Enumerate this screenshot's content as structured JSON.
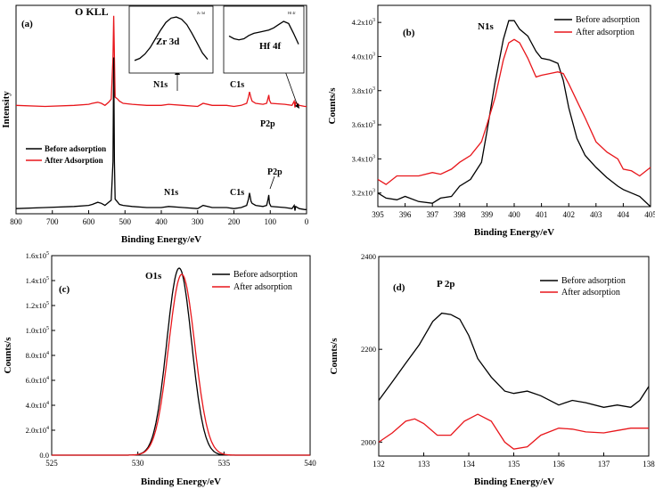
{
  "colors": {
    "before": "#000000",
    "after": "#e8161b"
  },
  "chart_data": [
    {
      "id": "a",
      "type": "line",
      "panel_label": "(a)",
      "xlabel": "Binding Energy/eV",
      "ylabel": "Intensity",
      "xlim": [
        800,
        0
      ],
      "ylim": [
        0,
        200
      ],
      "x_ticks": [
        800,
        700,
        600,
        500,
        400,
        300,
        200,
        100,
        0
      ],
      "legend": [
        "Before adsorption",
        "After Adsorption"
      ],
      "annotations": {
        "okll": "O KLL",
        "n1s_after": "N1s",
        "c1s_after": "C1s",
        "p2p_after": "P2p",
        "n1s_before": "N1s",
        "c1s_before": "C1s",
        "p2p_before": "P2p"
      },
      "series": [
        {
          "name": "After Adsorption",
          "color": "#e8161b",
          "x": [
            800,
            720,
            640,
            600,
            590,
            575,
            565,
            555,
            545,
            538,
            533,
            531,
            529,
            527,
            520,
            515,
            505,
            480,
            440,
            400,
            380,
            340,
            300,
            285,
            260,
            220,
            200,
            180,
            165,
            160,
            157,
            153,
            150,
            140,
            120,
            110,
            106,
            104,
            102,
            98,
            60,
            40,
            34,
            32,
            30,
            20,
            5,
            0
          ],
          "y": [
            104,
            103,
            104,
            105,
            106,
            107,
            106,
            104,
            107,
            110,
            150,
            190,
            150,
            112,
            110,
            108,
            106,
            105,
            104,
            104,
            105,
            104,
            103,
            106,
            104,
            104,
            103,
            104,
            106,
            112,
            117,
            111,
            108,
            106,
            105,
            106,
            111,
            114,
            109,
            106,
            105,
            104,
            108,
            102,
            107,
            104,
            103,
            103
          ]
        },
        {
          "name": "Before adsorption",
          "color": "#000000",
          "x": [
            800,
            720,
            640,
            600,
            590,
            575,
            565,
            555,
            545,
            538,
            533,
            531,
            529,
            527,
            520,
            515,
            505,
            480,
            440,
            400,
            380,
            340,
            300,
            285,
            260,
            220,
            200,
            180,
            165,
            160,
            157,
            153,
            150,
            140,
            120,
            110,
            106,
            104,
            102,
            98,
            60,
            40,
            34,
            32,
            30,
            20,
            5,
            0
          ],
          "y": [
            5,
            6,
            7,
            8,
            9,
            11,
            10,
            8,
            11,
            13,
            50,
            150,
            50,
            14,
            11,
            9,
            8,
            7,
            6,
            6,
            7,
            6,
            5,
            8,
            6,
            6,
            5,
            6,
            8,
            14,
            20,
            12,
            10,
            8,
            7,
            8,
            14,
            18,
            10,
            7,
            6,
            5,
            8,
            3,
            7,
            5,
            4,
            4
          ]
        }
      ],
      "inset_zr": {
        "title": "Zr 3d",
        "sub": "Zr 3d",
        "x": [
          1,
          2,
          3,
          4,
          5,
          6,
          7,
          8,
          9,
          10,
          11,
          12,
          13,
          14,
          15
        ],
        "y": [
          10,
          14,
          22,
          34,
          50,
          66,
          80,
          88,
          90,
          86,
          76,
          60,
          42,
          24,
          12
        ]
      },
      "inset_hf": {
        "title": "Hf 4f",
        "sub": "Hf 4f",
        "x": [
          1,
          2,
          3,
          4,
          5,
          6,
          7,
          8,
          9,
          10,
          11,
          12,
          13,
          14,
          15
        ],
        "y": [
          55,
          50,
          48,
          50,
          56,
          60,
          62,
          64,
          66,
          70,
          76,
          82,
          78,
          60,
          40
        ]
      }
    },
    {
      "id": "b",
      "type": "line",
      "panel_label": "(b)",
      "peak_label": "N1s",
      "xlabel": "Binding Energy/eV",
      "ylabel": "Counts/s",
      "xlim": [
        395,
        405
      ],
      "ylim": [
        3120,
        4300
      ],
      "x_ticks": [
        395,
        396,
        397,
        398,
        399,
        400,
        401,
        402,
        403,
        404,
        405
      ],
      "y_ticks": [
        {
          "v": 3200,
          "m": "3.2x10",
          "e": "3"
        },
        {
          "v": 3400,
          "m": "3.4x10",
          "e": "3"
        },
        {
          "v": 3600,
          "m": "3.6x10",
          "e": "3"
        },
        {
          "v": 3800,
          "m": "3.8x10",
          "e": "3"
        },
        {
          "v": 4000,
          "m": "4.0x10",
          "e": "3"
        },
        {
          "v": 4200,
          "m": "4.2x10",
          "e": "3"
        }
      ],
      "legend": [
        "Before adsorption",
        "After adsorption"
      ],
      "series": [
        {
          "name": "Before adsorption",
          "color": "#000000",
          "x": [
            395,
            395.3,
            395.7,
            396,
            396.5,
            397,
            397.3,
            397.7,
            398,
            398.4,
            398.8,
            399,
            399.3,
            399.6,
            399.8,
            400,
            400.2,
            400.5,
            400.8,
            401,
            401.3,
            401.6,
            401.8,
            402,
            402.3,
            402.6,
            403,
            403.4,
            403.8,
            404,
            404.3,
            404.6,
            405
          ],
          "y": [
            3200,
            3170,
            3160,
            3180,
            3150,
            3140,
            3170,
            3180,
            3240,
            3280,
            3380,
            3560,
            3850,
            4100,
            4210,
            4210,
            4160,
            4120,
            4030,
            3990,
            3980,
            3960,
            3860,
            3700,
            3520,
            3420,
            3350,
            3290,
            3240,
            3220,
            3200,
            3180,
            3120
          ]
        },
        {
          "name": "After adsorption",
          "color": "#e8161b",
          "x": [
            395,
            395.3,
            395.7,
            396,
            396.5,
            397,
            397.3,
            397.7,
            398,
            398.4,
            398.8,
            399,
            399.3,
            399.6,
            399.8,
            400,
            400.2,
            400.5,
            400.8,
            401,
            401.3,
            401.6,
            401.8,
            402,
            402.3,
            402.6,
            403,
            403.4,
            403.8,
            404,
            404.3,
            404.6,
            405
          ],
          "y": [
            3280,
            3250,
            3300,
            3300,
            3300,
            3320,
            3310,
            3340,
            3380,
            3420,
            3500,
            3600,
            3760,
            3980,
            4080,
            4100,
            4080,
            3990,
            3880,
            3890,
            3900,
            3910,
            3900,
            3840,
            3740,
            3640,
            3500,
            3440,
            3400,
            3340,
            3330,
            3300,
            3350
          ]
        }
      ]
    },
    {
      "id": "c",
      "type": "line",
      "panel_label": "(c)",
      "peak_label": "O1s",
      "xlabel": "Binding Energy/eV",
      "ylabel": "Counts/s",
      "xlim": [
        525,
        540
      ],
      "ylim": [
        0,
        160000
      ],
      "x_ticks": [
        525,
        530,
        535,
        540
      ],
      "y_ticks": [
        {
          "v": 0,
          "m": "0.0",
          "e": ""
        },
        {
          "v": 20000,
          "m": "2.0x10",
          "e": "4"
        },
        {
          "v": 40000,
          "m": "4.0x10",
          "e": "4"
        },
        {
          "v": 60000,
          "m": "6.0x10",
          "e": "4"
        },
        {
          "v": 80000,
          "m": "8.0x10",
          "e": "4"
        },
        {
          "v": 100000,
          "m": "1.0x10",
          "e": "5"
        },
        {
          "v": 120000,
          "m": "1.2x10",
          "e": "5"
        },
        {
          "v": 140000,
          "m": "1.4x10",
          "e": "5"
        },
        {
          "v": 160000,
          "m": "1.6x10",
          "e": "5"
        }
      ],
      "legend": [
        "Before adsorption",
        "After adsorption"
      ],
      "series": [
        {
          "name": "Before adsorption",
          "color": "#000000",
          "peak": {
            "center": 532.4,
            "height": 150000,
            "sigma": 0.72
          }
        },
        {
          "name": "After adsorption",
          "color": "#e8161b",
          "peak": {
            "center": 532.55,
            "height": 145000,
            "sigma": 0.76
          }
        }
      ]
    },
    {
      "id": "d",
      "type": "line",
      "panel_label": "(d)",
      "peak_label": "P 2p",
      "xlabel": "Binding Energy/eV",
      "ylabel": "Counts/s",
      "xlim": [
        132,
        138
      ],
      "ylim": [
        1970,
        2400
      ],
      "x_ticks": [
        132,
        133,
        134,
        135,
        136,
        137,
        138
      ],
      "y_ticks": [
        {
          "v": 2000,
          "m": "2000",
          "e": ""
        },
        {
          "v": 2200,
          "m": "2200",
          "e": ""
        },
        {
          "v": 2400,
          "m": "2400",
          "e": ""
        }
      ],
      "legend": [
        "Before adsorption",
        "After adsorption"
      ],
      "series": [
        {
          "name": "Before adsorption",
          "color": "#000000",
          "x": [
            132,
            132.3,
            132.6,
            132.9,
            133.2,
            133.4,
            133.6,
            133.8,
            134,
            134.2,
            134.5,
            134.8,
            135,
            135.3,
            135.6,
            136,
            136.3,
            136.6,
            137,
            137.3,
            137.6,
            137.8,
            138
          ],
          "y": [
            2090,
            2130,
            2170,
            2210,
            2260,
            2278,
            2275,
            2265,
            2230,
            2180,
            2140,
            2110,
            2105,
            2110,
            2100,
            2080,
            2090,
            2085,
            2075,
            2080,
            2075,
            2090,
            2120
          ]
        },
        {
          "name": "After adsorption",
          "color": "#e8161b",
          "x": [
            132,
            132.3,
            132.6,
            132.8,
            133,
            133.3,
            133.6,
            133.9,
            134.2,
            134.5,
            134.8,
            135,
            135.3,
            135.6,
            136,
            136.3,
            136.6,
            137,
            137.3,
            137.6,
            138
          ],
          "y": [
            2000,
            2020,
            2045,
            2050,
            2040,
            2015,
            2015,
            2045,
            2060,
            2045,
            2000,
            1985,
            1990,
            2015,
            2030,
            2028,
            2022,
            2020,
            2025,
            2030,
            2030
          ]
        }
      ]
    }
  ]
}
